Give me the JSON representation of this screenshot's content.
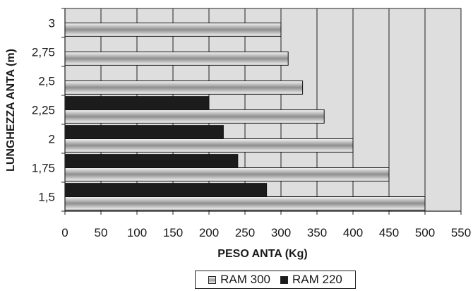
{
  "chart_data": {
    "type": "bar",
    "orientation": "horizontal",
    "xlabel": "PESO ANTA  (Kg)",
    "ylabel": "LUNGHEZZA ANTA (m)",
    "xlim": [
      0,
      550
    ],
    "xticks": [
      "0",
      "50",
      "100",
      "150",
      "200",
      "250",
      "300",
      "350",
      "400",
      "450",
      "500",
      "550"
    ],
    "categories": [
      "3",
      "2,75",
      "2,5",
      "2,25",
      "2",
      "1,75",
      "1,5"
    ],
    "grid": true,
    "legend_position": "bottom",
    "series": [
      {
        "name": "RAM 300",
        "values": [
          300,
          310,
          330,
          360,
          400,
          450,
          500
        ]
      },
      {
        "name": "RAM 220",
        "values": [
          null,
          null,
          null,
          200,
          220,
          240,
          280
        ]
      }
    ]
  },
  "colors": {
    "plot_background": "#dedede",
    "ram300_light": "#f4f4f4",
    "ram300_dark": "#9a9a9a",
    "ram220": "#1c1c1c"
  }
}
